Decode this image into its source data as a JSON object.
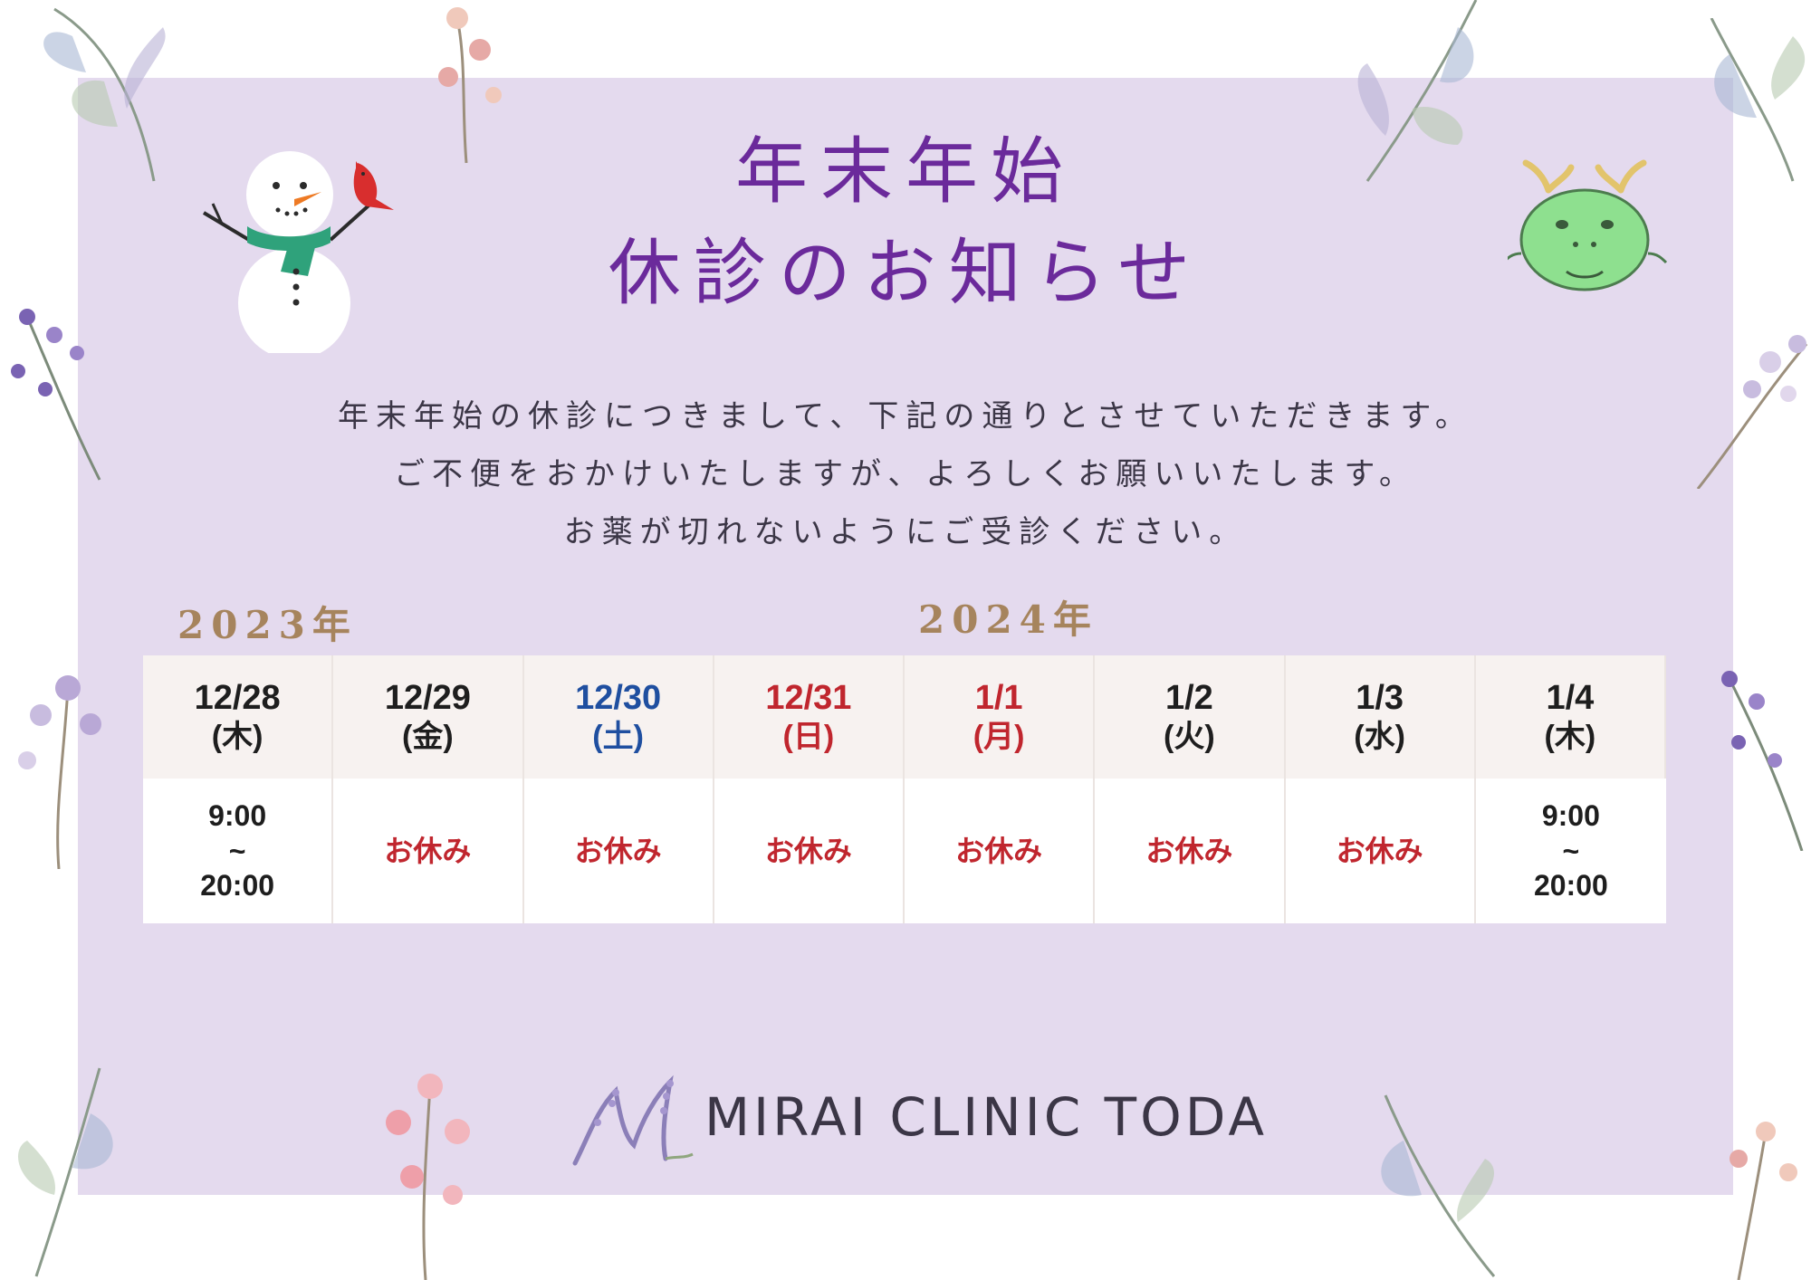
{
  "title": {
    "line1": "年末年始",
    "line2": "休診のお知らせ"
  },
  "notice": {
    "line1": "年末年始の休診につきまして、下記の通りとさせていただきます。",
    "line2": "ご不便をおかけいたしますが、よろしくお願いいたします。",
    "line3": "お薬が切れないようにご受診ください。"
  },
  "years": {
    "y2023": "2023年",
    "y2024": "2024年"
  },
  "schedule": [
    {
      "date": "12/28",
      "dow": "(木)",
      "color": "#1e1e1e",
      "status": "open",
      "open": "9:00",
      "sep": "~",
      "close": "20:00"
    },
    {
      "date": "12/29",
      "dow": "(金)",
      "color": "#1e1e1e",
      "status": "お休み"
    },
    {
      "date": "12/30",
      "dow": "(土)",
      "color": "#1f4fa0",
      "status": "お休み"
    },
    {
      "date": "12/31",
      "dow": "(日)",
      "color": "#c0262e",
      "status": "お休み"
    },
    {
      "date": "1/1",
      "dow": "(月)",
      "color": "#c0262e",
      "status": "お休み"
    },
    {
      "date": "1/2",
      "dow": "(火)",
      "color": "#1e1e1e",
      "status": "お休み"
    },
    {
      "date": "1/3",
      "dow": "(水)",
      "color": "#1e1e1e",
      "status": "お休み"
    },
    {
      "date": "1/4",
      "dow": "(木)",
      "color": "#1e1e1e",
      "status": "open",
      "open": "9:00",
      "sep": "~",
      "close": "20:00"
    }
  ],
  "logo": {
    "text": "MIRAI CLINIC TODA",
    "icon": "lavender-m-logo"
  },
  "decorations": {
    "left": "snowman-with-cardinal",
    "right": "green-dragon-face",
    "frame": "watercolor-flowers-and-leaves"
  },
  "colors": {
    "panel": "#e4daee",
    "title": "#6b2a9b",
    "year": "#a6845d",
    "closed": "#c0262e",
    "saturday": "#1f4fa0",
    "holiday": "#c0262e"
  }
}
